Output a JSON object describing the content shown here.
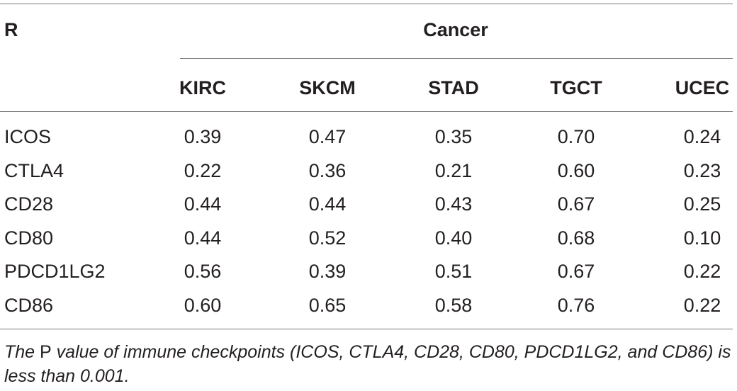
{
  "table": {
    "stub_header": "R",
    "spanner_header": "Cancer",
    "columns": [
      "KIRC",
      "SKCM",
      "STAD",
      "TGCT",
      "UCEC"
    ],
    "rows": [
      {
        "label": "ICOS",
        "values": [
          "0.39",
          "0.47",
          "0.35",
          "0.70",
          "0.24"
        ]
      },
      {
        "label": "CTLA4",
        "values": [
          "0.22",
          "0.36",
          "0.21",
          "0.60",
          "0.23"
        ]
      },
      {
        "label": "CD28",
        "values": [
          "0.44",
          "0.44",
          "0.43",
          "0.67",
          "0.25"
        ]
      },
      {
        "label": "CD80",
        "values": [
          "0.44",
          "0.52",
          "0.40",
          "0.68",
          "0.10"
        ]
      },
      {
        "label": "PDCD1LG2",
        "values": [
          "0.56",
          "0.39",
          "0.51",
          "0.67",
          "0.22"
        ]
      },
      {
        "label": "CD86",
        "values": [
          "0.60",
          "0.65",
          "0.58",
          "0.76",
          "0.22"
        ]
      }
    ]
  },
  "footnote": {
    "prefix": "The ",
    "p_letter": "P",
    "suffix": " value of immune checkpoints (ICOS, CTLA4, CD28, CD80, PDCD1LG2, and CD86) is less than 0.001."
  }
}
